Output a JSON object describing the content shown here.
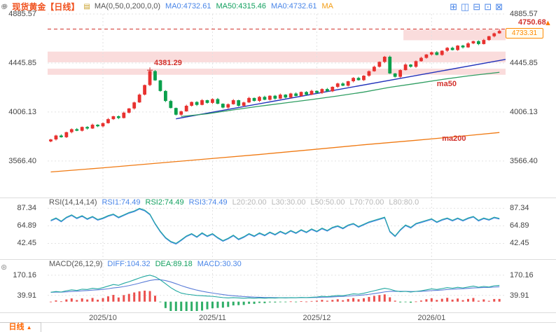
{
  "header": {
    "title": "现货黄金【日线】",
    "ma_segments": [
      {
        "text": "MA(0,50,0,200,0,0)",
        "color": "#555555",
        "name": "ma-indicator-name"
      },
      {
        "text": "MA0:4732.61",
        "color": "#4a86e8",
        "name": "ma0-value"
      },
      {
        "text": "MA50:4315.46",
        "color": "#13a05f",
        "name": "ma50-value"
      },
      {
        "text": "MA0:4732.61",
        "color": "#4a86e8",
        "name": "ma0-value-2"
      },
      {
        "text": "MA",
        "color": "#f39c12",
        "name": "ma-truncated"
      }
    ],
    "toolbar_icons": [
      {
        "glyph": "⊞",
        "name": "layout-grid-icon"
      },
      {
        "glyph": "◫",
        "name": "layout-split-icon"
      },
      {
        "glyph": "⊟",
        "name": "layout-rows-icon"
      },
      {
        "glyph": "⊡",
        "name": "layout-single-icon"
      },
      {
        "glyph": "⊠",
        "name": "close-panel-icon"
      }
    ]
  },
  "left_rail_icons": [
    {
      "glyph": "⊕",
      "name": "crosshair-tool-icon"
    },
    {
      "glyph": "⊛",
      "name": "indicator-tool-icon"
    }
  ],
  "right_rail": {
    "scroll_glyph": "▲"
  },
  "footer": {
    "tab_label": "日线",
    "tab_arrow": "▲"
  },
  "rsi_header_segments": [
    {
      "text": "RSI(14,14,14)",
      "color": "#555555",
      "name": "rsi-indicator-name"
    },
    {
      "text": "RSI1:74.49",
      "color": "#4a86e8",
      "name": "rsi1-value"
    },
    {
      "text": "RSI2:74.49",
      "color": "#13a05f",
      "name": "rsi2-value"
    },
    {
      "text": "RSI3:74.49",
      "color": "#4a86e8",
      "name": "rsi3-value"
    },
    {
      "text": "L20:20.00",
      "color": "#b8b8b8",
      "name": "rsi-l20"
    },
    {
      "text": "L30:30.00",
      "color": "#b8b8b8",
      "name": "rsi-l30"
    },
    {
      "text": "L50:50.00",
      "color": "#b8b8b8",
      "name": "rsi-l50"
    },
    {
      "text": "L70:70.00",
      "color": "#b8b8b8",
      "name": "rsi-l70"
    },
    {
      "text": "L80:80.0",
      "color": "#b8b8b8",
      "name": "rsi-l80"
    }
  ],
  "macd_header_segments": [
    {
      "text": "MACD(26,12,9)",
      "color": "#555555",
      "name": "macd-indicator-name"
    },
    {
      "text": "DIFF:104.32",
      "color": "#4a86e8",
      "name": "macd-diff-value"
    },
    {
      "text": "DEA:89.18",
      "color": "#13a05f",
      "name": "macd-dea-value"
    },
    {
      "text": "MACD:30.30",
      "color": "#4a86e8",
      "name": "macd-value"
    }
  ],
  "colors": {
    "up": "#e8312f",
    "down": "#0aa04c",
    "ma50_line": "#2f9e62",
    "ma200_line": "#f07a13",
    "trend": "#2233bb",
    "zone": "#f6c0c0",
    "dashed": "#d2322d",
    "tag": "#ff8a00",
    "label_red": "#d2322d",
    "rsi_line": "#1fa7a0",
    "rsi_line2": "#4a86e8",
    "diff": "#1fa7a0",
    "dea": "#5b7dd8",
    "grid": "#e2e2e2",
    "axis_text": "#444444",
    "title": "#f0511e"
  },
  "chart_data": {
    "type": "candlestick",
    "title": "现货黄金 日线 (Spot Gold Daily)",
    "x_tick_idx": [
      10,
      31,
      51,
      73
    ],
    "x_tick_labels": [
      "2025/10",
      "2025/11",
      "2025/12",
      "2026/01"
    ],
    "main": {
      "y_axis_ticks": [
        4885.57,
        4445.85,
        4006.13,
        3566.4
      ],
      "y_range": [
        3245,
        4898
      ],
      "closes": [
        3760,
        3795,
        3780,
        3825,
        3852,
        3838,
        3872,
        3858,
        3892,
        3878,
        3906,
        3942,
        3968,
        3952,
        4000,
        4038,
        4092,
        4162,
        4248,
        4373,
        4290,
        4195,
        4105,
        4042,
        3982,
        4012,
        4062,
        4096,
        4070,
        4112,
        4088,
        4122,
        4080,
        4046,
        4076,
        4112,
        4062,
        4092,
        4132,
        4106,
        4142,
        4116,
        4152,
        4126,
        4162,
        4136,
        4172,
        4150,
        4186,
        4162,
        4196,
        4178,
        4212,
        4192,
        4232,
        4262,
        4242,
        4282,
        4312,
        4292,
        4332,
        4372,
        4412,
        4456,
        4502,
        4352,
        4322,
        4382,
        4432,
        4412,
        4462,
        4492,
        4522,
        4542,
        4518,
        4556,
        4582,
        4562,
        4602,
        4586,
        4622,
        4642,
        4616,
        4652,
        4686,
        4712,
        4733.31
      ],
      "high_overrides": {
        "19": 4381.29,
        "86": 4750.68
      },
      "last_price": 4733.31,
      "last_price_label": "4733.31",
      "dashed_level": 4750.68,
      "dashed_label": "4750.68",
      "peak_annotation": {
        "idx": 19,
        "price": 4381.29,
        "label": "4381.29"
      },
      "ma50": {
        "label": "ma50",
        "label_pos": [
          74,
          4258
        ],
        "points": [
          [
            25,
            3966
          ],
          [
            30,
            3990
          ],
          [
            35,
            4025
          ],
          [
            40,
            4058
          ],
          [
            45,
            4088
          ],
          [
            50,
            4118
          ],
          [
            55,
            4150
          ],
          [
            60,
            4185
          ],
          [
            65,
            4228
          ],
          [
            70,
            4262
          ],
          [
            75,
            4298
          ],
          [
            80,
            4330
          ],
          [
            86,
            4362
          ]
        ]
      },
      "ma200": {
        "label": "ma200",
        "label_pos": [
          75,
          3768
        ],
        "points": [
          [
            0,
            3468
          ],
          [
            10,
            3505
          ],
          [
            20,
            3545
          ],
          [
            30,
            3585
          ],
          [
            40,
            3625
          ],
          [
            50,
            3668
          ],
          [
            60,
            3712
          ],
          [
            70,
            3752
          ],
          [
            80,
            3795
          ],
          [
            86,
            3822
          ]
        ]
      },
      "trendline": {
        "points": [
          [
            24,
            3945
          ],
          [
            87.5,
            4478
          ]
        ]
      },
      "zones": [
        {
          "from": 4650,
          "to": 4745,
          "x_from_idx": 68,
          "x_to_idx": 88
        },
        {
          "from": 4452,
          "to": 4548,
          "x_from_idx": 0,
          "x_to_idx": 88
        },
        {
          "from": 4340,
          "to": 4395,
          "x_from_idx": 0,
          "x_to_idx": 88
        }
      ]
    },
    "rsi": {
      "y_axis_ticks": [
        87.34,
        64.89,
        42.45
      ],
      "y_range": [
        24,
        94
      ],
      "values": [
        72,
        75,
        71,
        76,
        79,
        75,
        78,
        74,
        77,
        73,
        75,
        78,
        80,
        76,
        79,
        82,
        84,
        87.3,
        85,
        80,
        68,
        58,
        50,
        45,
        42.45,
        47,
        52,
        55,
        51,
        56,
        52,
        55,
        50,
        46,
        49,
        53,
        48,
        51,
        55,
        52,
        56,
        53,
        57,
        54,
        58,
        55,
        59,
        56,
        60,
        57,
        61,
        58,
        62,
        59,
        63,
        65,
        62,
        66,
        68,
        64,
        67,
        70,
        72,
        74,
        76,
        58,
        52,
        60,
        66,
        63,
        68,
        70,
        72,
        74,
        70,
        73,
        75,
        72,
        75,
        72,
        75,
        77,
        72,
        75,
        73,
        76,
        74.49
      ]
    },
    "macd": {
      "y_axis_ticks": [
        170.16,
        39.91
      ],
      "y_range": [
        -60,
        228
      ],
      "diff": [
        60,
        65,
        62,
        70,
        76,
        72,
        80,
        78,
        86,
        82,
        90,
        100,
        110,
        105,
        118,
        128,
        140,
        152,
        163,
        170.16,
        160,
        140,
        115,
        90,
        70,
        55,
        48,
        44,
        40,
        38,
        36,
        34,
        30,
        26,
        24,
        26,
        24,
        22,
        24,
        22,
        24,
        22,
        24,
        23,
        25,
        24,
        26,
        25,
        27,
        26,
        28,
        30,
        34,
        32,
        36,
        40,
        38,
        44,
        50,
        48,
        54,
        62,
        70,
        78,
        86,
        80,
        70,
        64,
        66,
        62,
        66,
        70,
        76,
        82,
        78,
        84,
        90,
        86,
        92,
        88,
        94,
        100,
        92,
        98,
        94,
        102,
        104.32
      ]
    }
  }
}
